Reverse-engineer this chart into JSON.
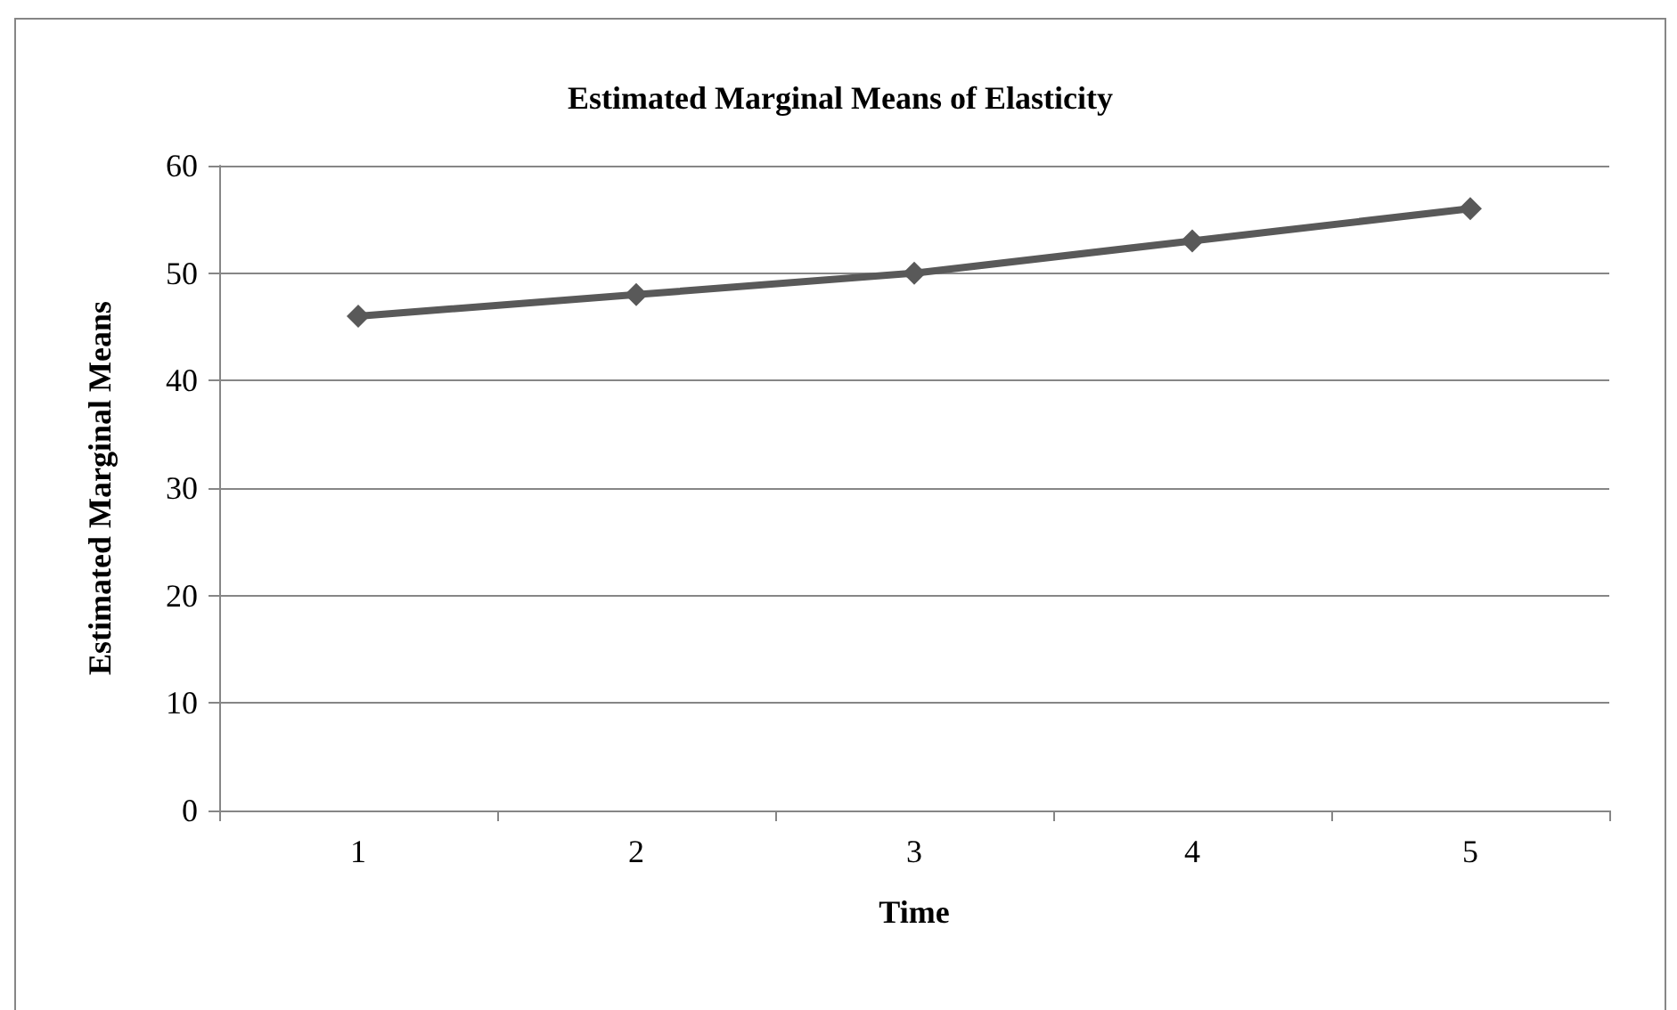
{
  "chart_data": {
    "type": "line",
    "title": "Estimated Marginal Means of Elasticity",
    "xlabel": "Time",
    "ylabel": "Estimated Marginal Means",
    "categories": [
      "1",
      "2",
      "3",
      "4",
      "5"
    ],
    "series": [
      {
        "color": "#595959",
        "values": [
          46,
          48,
          50,
          53,
          56
        ]
      }
    ],
    "ylim": [
      0,
      60
    ],
    "yticks": [
      0,
      10,
      20,
      30,
      40,
      50,
      60
    ],
    "grid": "y",
    "marker": "diamond",
    "line_style": "solid"
  }
}
